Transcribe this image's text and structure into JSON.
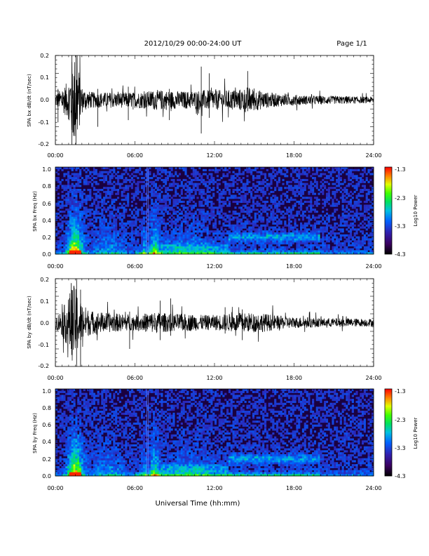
{
  "header": {
    "title": "2012/10/29  00:00-24:00 UT",
    "page": "Page 1/1"
  },
  "chart_data": [
    {
      "type": "line",
      "ylabel": "SPA bx dB/dt (nT/sec)",
      "ylim": [
        -0.2,
        0.2
      ],
      "yticks": [
        "0.2",
        "0.1",
        "0.0",
        "-0.1",
        "-0.2"
      ],
      "xlim": [
        "00:00",
        "24:00"
      ],
      "xticks": [
        "00:00",
        "06:00",
        "12:00",
        "18:00",
        "24:00"
      ],
      "envelope": {
        "hours": [
          0,
          0.5,
          1,
          1.3,
          1.6,
          2,
          2.5,
          3,
          4,
          5,
          6,
          7,
          7.5,
          8,
          9,
          10,
          11,
          12,
          13,
          14,
          14.5,
          15,
          16,
          17,
          18,
          19,
          20,
          21,
          22,
          23,
          24
        ],
        "amplitude": [
          0.03,
          0.05,
          0.09,
          0.2,
          0.2,
          0.06,
          0.04,
          0.035,
          0.035,
          0.035,
          0.035,
          0.04,
          0.045,
          0.045,
          0.04,
          0.04,
          0.045,
          0.045,
          0.045,
          0.05,
          0.06,
          0.05,
          0.035,
          0.028,
          0.025,
          0.02,
          0.02,
          0.018,
          0.018,
          0.015,
          0.015
        ]
      }
    },
    {
      "type": "heatmap",
      "ylabel": "SPA bx Freq (Hz)",
      "ylim": [
        0.0,
        1.0
      ],
      "yticks": [
        "1.0",
        "0.8",
        "0.6",
        "0.4",
        "0.2",
        "0.0"
      ],
      "xlim": [
        "00:00",
        "24:00"
      ],
      "xticks": [
        "00:00",
        "06:00",
        "12:00",
        "18:00",
        "24:00"
      ],
      "colorbar": {
        "label": "Log10 Power",
        "min": -4.3,
        "max": -1.3,
        "ticks": [
          "-1.3",
          "-2.3",
          "-3.3",
          "-4.3"
        ]
      }
    },
    {
      "type": "line",
      "ylabel": "SPA by dB/dt (nT/sec)",
      "ylim": [
        -0.2,
        0.2
      ],
      "yticks": [
        "0.2",
        "0.1",
        "0.0",
        "-0.1",
        "-0.2"
      ],
      "xlim": [
        "00:00",
        "24:00"
      ],
      "xticks": [
        "00:00",
        "06:00",
        "12:00",
        "18:00",
        "24:00"
      ],
      "envelope": {
        "hours": [
          0,
          0.5,
          1,
          1.3,
          1.6,
          2,
          2.5,
          3,
          4,
          5,
          6,
          7,
          7.5,
          8,
          9,
          10,
          11,
          12,
          13,
          14,
          15,
          16,
          17,
          18,
          19,
          20,
          21,
          22,
          23,
          24
        ],
        "amplitude": [
          0.03,
          0.06,
          0.12,
          0.18,
          0.15,
          0.09,
          0.06,
          0.05,
          0.045,
          0.04,
          0.035,
          0.045,
          0.05,
          0.045,
          0.04,
          0.04,
          0.035,
          0.035,
          0.04,
          0.045,
          0.045,
          0.04,
          0.03,
          0.025,
          0.025,
          0.02,
          0.02,
          0.02,
          0.018,
          0.018
        ]
      }
    },
    {
      "type": "heatmap",
      "ylabel": "SPA by Freq (Hz)",
      "ylim": [
        0.0,
        1.0
      ],
      "yticks": [
        "1.0",
        "0.8",
        "0.6",
        "0.4",
        "0.2",
        "0.0"
      ],
      "xlim": [
        "00:00",
        "24:00"
      ],
      "xticks": [
        "00:00",
        "06:00",
        "12:00",
        "18:00",
        "24:00"
      ],
      "colorbar": {
        "label": "Log10 Power",
        "min": -4.3,
        "max": -1.3,
        "ticks": [
          "-1.3",
          "-2.3",
          "-3.3",
          "-4.3"
        ]
      }
    }
  ],
  "xlabel": "Universal Time (hh:mm)"
}
